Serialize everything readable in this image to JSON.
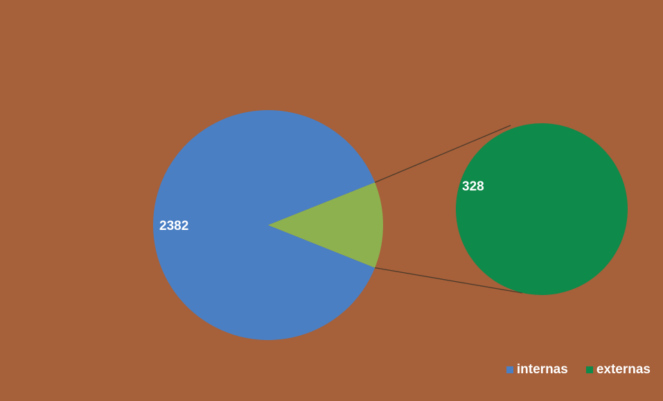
{
  "chart_data": {
    "type": "pie",
    "subtype": "pie-of-pie",
    "series": [
      {
        "name": "",
        "values": [
          2382,
          328
        ],
        "categories": [
          "internas",
          "externas"
        ]
      }
    ],
    "primary_pie": {
      "label": "2382",
      "colors": {
        "main": "#4a7fc4",
        "split_wedge": "#8db14e"
      }
    },
    "secondary_pie": {
      "label": "328",
      "color": "#0e8a4a"
    },
    "legend": {
      "position": "bottom-right",
      "items": [
        {
          "label": "internas",
          "color": "#4a7fc4"
        },
        {
          "label": "externas",
          "color": "#0e8a4a"
        }
      ]
    },
    "background_color": "#a6603a"
  }
}
